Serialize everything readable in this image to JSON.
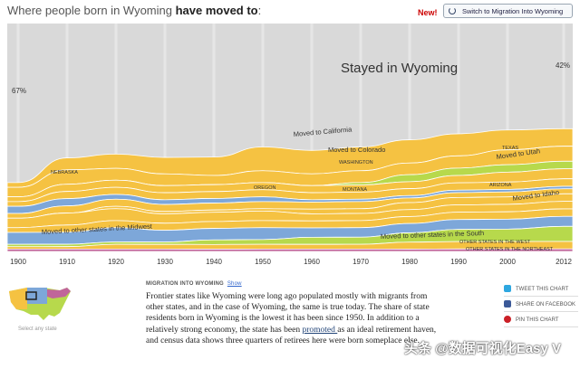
{
  "header": {
    "title_prefix": "Where people born in Wyoming ",
    "title_bold": "have moved to",
    "title_suffix": ":",
    "new_label": "New!",
    "switch_label": "Switch to Migration Into Wyoming"
  },
  "chart_data": {
    "type": "area",
    "title": "Where people born in Wyoming have moved to",
    "x": [
      1900,
      1910,
      1920,
      1930,
      1940,
      1950,
      1960,
      1970,
      1980,
      1990,
      2000,
      2012
    ],
    "x_tick_labels": [
      "1900",
      "1910",
      "1920",
      "1930",
      "1940",
      "1950",
      "1960",
      "1970",
      "1980",
      "1990",
      "2000",
      "2012"
    ],
    "stayed_label": "Stayed in Wyoming",
    "stayed_start_pct": "67%",
    "stayed_end_pct": "42%",
    "series": [
      {
        "name": "Stayed in Wyoming",
        "color": "#d8d8d8",
        "values": [
          67,
          56,
          55,
          57,
          58,
          52,
          54,
          52,
          50,
          45,
          43,
          42
        ]
      },
      {
        "name": "Moved to California",
        "color": "#f5c242",
        "values": [
          2,
          5,
          6,
          7,
          8,
          10,
          10,
          10,
          10,
          9,
          8,
          7
        ]
      },
      {
        "name": "Moved to Colorado",
        "color": "#f5c242",
        "values": [
          4,
          6,
          5,
          5,
          4,
          5,
          5,
          5,
          5,
          5,
          6,
          6
        ]
      },
      {
        "name": "Texas",
        "color": "#b7d94c",
        "values": [
          0,
          0,
          0,
          0,
          0,
          0,
          0,
          1,
          3,
          3,
          3,
          3
        ]
      },
      {
        "name": "Moved to Utah",
        "color": "#f5c242",
        "values": [
          2,
          3,
          3,
          3,
          3,
          3,
          3,
          3,
          3,
          3,
          4,
          4
        ]
      },
      {
        "name": "Washington",
        "color": "#f5c242",
        "values": [
          2,
          3,
          3,
          3,
          3,
          3,
          3,
          3,
          3,
          3,
          3,
          3
        ]
      },
      {
        "name": "Nebraska",
        "color": "#7da7d9",
        "values": [
          3,
          3,
          2,
          2,
          2,
          2,
          1,
          1,
          1,
          1,
          1,
          1
        ]
      },
      {
        "name": "Oregon",
        "color": "#f5c242",
        "values": [
          2,
          3,
          3,
          3,
          3,
          3,
          3,
          3,
          2,
          2,
          2,
          2
        ]
      },
      {
        "name": "Arizona",
        "color": "#f5c242",
        "values": [
          0,
          0,
          1,
          1,
          1,
          1,
          2,
          2,
          3,
          3,
          3,
          3
        ]
      },
      {
        "name": "Montana",
        "color": "#f5c242",
        "values": [
          4,
          5,
          5,
          4,
          4,
          4,
          3,
          3,
          3,
          3,
          3,
          3
        ]
      },
      {
        "name": "Moved to Idaho",
        "color": "#f5c242",
        "values": [
          2,
          3,
          3,
          3,
          3,
          3,
          3,
          3,
          3,
          3,
          3,
          3
        ]
      },
      {
        "name": "Moved to other states in the Midwest",
        "color": "#7da7d9",
        "values": [
          5,
          5,
          6,
          5,
          5,
          5,
          4,
          4,
          4,
          4,
          4,
          4
        ]
      },
      {
        "name": "Moved to other states in the South",
        "color": "#b7d94c",
        "values": [
          1,
          1,
          1,
          1,
          2,
          2,
          3,
          3,
          4,
          5,
          5,
          6
        ]
      },
      {
        "name": "Other states in the West",
        "color": "#f5c242",
        "values": [
          1,
          1,
          2,
          2,
          2,
          2,
          2,
          2,
          3,
          3,
          3,
          3
        ]
      },
      {
        "name": "Other states in the Northeast",
        "color": "#c0659a",
        "values": [
          1,
          1,
          1,
          1,
          1,
          1,
          1,
          1,
          1,
          1,
          1,
          1
        ]
      }
    ],
    "series_labels": {
      "california": "Moved to California",
      "colorado": "Moved to Colorado",
      "texas": "TEXAS",
      "utah": "Moved to Utah",
      "washington": "WASHINGTON",
      "nebraska": "NEBRASKA",
      "oregon": "OREGON",
      "arizona": "ARIZONA",
      "montana": "MONTANA",
      "idaho": "Moved to Idaho",
      "midwest": "Moved to other states in the Midwest",
      "south": "Moved to other states in the South",
      "west": "OTHER STATES IN THE WEST",
      "northeast": "OTHER STATES IN THE NORTHEAST"
    }
  },
  "sidebar": {
    "select_label": "Select any state"
  },
  "article": {
    "kicker": "MIGRATION INTO WYOMING",
    "show_link": "Show",
    "para_part1": "Frontier states like Wyoming were long ago populated mostly with migrants from other states, and in the case of Wyoming, the same is true today. The share of state residents born in Wyoming is the lowest it has been since 1950. In addition to a relatively strong economy, the state has been ",
    "para_link": "promoted ",
    "para_part2": "as an ideal retirement haven, and census data shows three quarters of retirees here were born someplace else."
  },
  "share": {
    "twitter": "TWEET THIS CHART",
    "facebook": "SHARE ON FACEBOOK",
    "pinterest": "PIN THIS CHART",
    "twitter_color": "#2ea7e0",
    "facebook_color": "#3b5998",
    "pinterest_color": "#cb2027"
  },
  "watermark": "头条 @数据可视化Easy V"
}
